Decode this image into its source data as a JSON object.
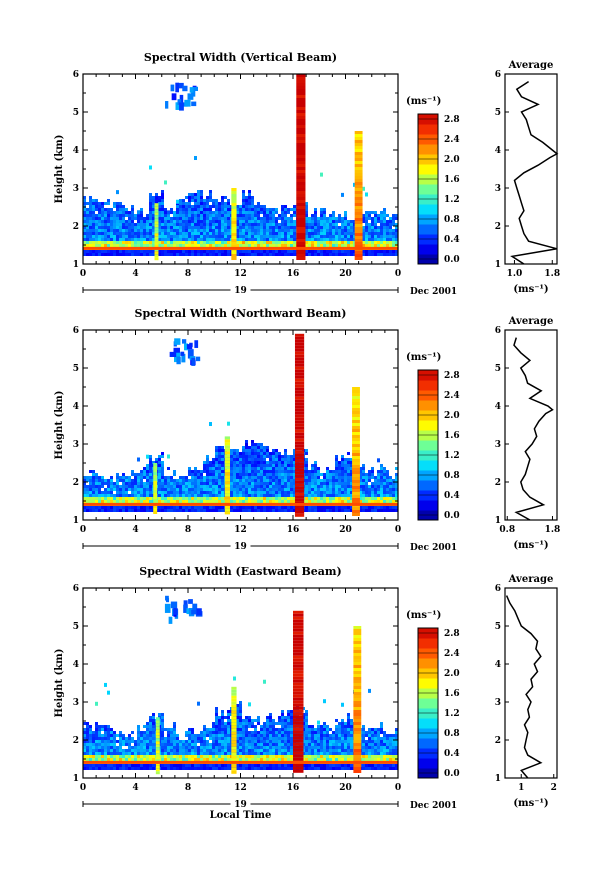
{
  "chart_data": [
    {
      "type": "heatmap",
      "title": "Spectral Width (Vertical Beam)",
      "ylabel": "Height (km)",
      "xlim": [
        0,
        24
      ],
      "ylim": [
        1,
        6
      ],
      "x_ticks": [
        "0",
        "4",
        "8",
        "12",
        "16",
        "20",
        "0"
      ],
      "y_ticks": [
        "1",
        "2",
        "3",
        "4",
        "5",
        "6"
      ],
      "day_label": "19",
      "month_label": "Dec 2001",
      "xlabel": "",
      "colorbar": {
        "unit": "(ms⁻¹)",
        "min": 0,
        "max": 3.0,
        "ticks": [
          "0.0",
          "0.4",
          "0.8",
          "1.2",
          "1.6",
          "2.0",
          "2.4",
          "2.8"
        ]
      },
      "features": {
        "layer_top_km": [
          2.7,
          2.6,
          2.5,
          2.4,
          2.3,
          2.8,
          2.4,
          2.6,
          2.9,
          2.8,
          2.7,
          2.6,
          2.8,
          2.5,
          2.4,
          2.5,
          2.6,
          2.3,
          2.4,
          2.3,
          2.2,
          2.3,
          2.4,
          2.3
        ],
        "layer_top_hours": [
          0.5,
          1.5,
          2.5,
          3.5,
          4.5,
          5.5,
          6.5,
          7.5,
          8.5,
          9.5,
          10.5,
          11.5,
          12.5,
          13.5,
          14.5,
          15.5,
          16.5,
          17.5,
          18.5,
          19.5,
          20.5,
          21.5,
          22.5,
          23.5
        ],
        "columns": [
          {
            "hour": 16.6,
            "width_h": 0.7,
            "top_km": 6.0,
            "value": 3.0
          },
          {
            "hour": 21.0,
            "width_h": 0.6,
            "top_km": 4.5,
            "value": 2.4
          },
          {
            "hour": 11.5,
            "width_h": 0.4,
            "top_km": 3.0,
            "value": 2.0
          },
          {
            "hour": 5.6,
            "width_h": 0.3,
            "top_km": 2.6,
            "value": 1.8
          }
        ]
      },
      "average": {
        "title": "Average",
        "xlabel": "(ms⁻¹)",
        "xlim": [
          0.8,
          1.9
        ],
        "x_ticks": [
          "1.0",
          "1.8"
        ],
        "height_km": [
          1.0,
          1.2,
          1.4,
          1.6,
          1.8,
          2.0,
          2.2,
          2.4,
          2.6,
          2.8,
          3.0,
          3.2,
          3.4,
          3.6,
          3.8,
          3.9,
          4.0,
          4.2,
          4.4,
          4.6,
          4.8,
          5.0,
          5.2,
          5.4,
          5.6,
          5.8
        ],
        "value": [
          1.2,
          0.95,
          1.9,
          1.3,
          1.2,
          1.15,
          1.1,
          1.2,
          1.15,
          1.1,
          1.05,
          1.0,
          1.2,
          1.5,
          1.75,
          1.9,
          1.8,
          1.6,
          1.35,
          1.3,
          1.25,
          1.15,
          1.5,
          1.15,
          1.05,
          1.3
        ]
      }
    },
    {
      "type": "heatmap",
      "title": "Spectral Width (Northward Beam)",
      "ylabel": "Height (km)",
      "xlim": [
        0,
        24
      ],
      "ylim": [
        1,
        6
      ],
      "x_ticks": [
        "0",
        "4",
        "8",
        "12",
        "16",
        "20",
        "0"
      ],
      "y_ticks": [
        "1",
        "2",
        "3",
        "4",
        "5",
        "6"
      ],
      "day_label": "19",
      "month_label": "Dec 2001",
      "xlabel": "",
      "colorbar": {
        "unit": "(ms⁻¹)",
        "min": 0,
        "max": 3.0,
        "ticks": [
          "0.0",
          "0.4",
          "0.8",
          "1.2",
          "1.6",
          "2.0",
          "2.4",
          "2.8"
        ]
      },
      "features": {
        "layer_top_km": [
          2.2,
          2.1,
          2.1,
          2.2,
          2.3,
          2.6,
          2.2,
          2.1,
          2.3,
          2.6,
          2.8,
          2.9,
          3.0,
          2.9,
          2.8,
          2.7,
          2.8,
          2.4,
          2.3,
          2.6,
          2.7,
          2.4,
          2.3,
          2.2
        ],
        "layer_top_hours": [
          0.5,
          1.5,
          2.5,
          3.5,
          4.5,
          5.5,
          6.5,
          7.5,
          8.5,
          9.5,
          10.5,
          11.5,
          12.5,
          13.5,
          14.5,
          15.5,
          16.5,
          17.5,
          18.5,
          19.5,
          20.5,
          21.5,
          22.5,
          23.5
        ],
        "columns": [
          {
            "hour": 16.5,
            "width_h": 0.7,
            "top_km": 5.9,
            "value": 3.0
          },
          {
            "hour": 20.8,
            "width_h": 0.6,
            "top_km": 4.5,
            "value": 2.3
          },
          {
            "hour": 11.0,
            "width_h": 0.4,
            "top_km": 3.2,
            "value": 2.0
          },
          {
            "hour": 5.5,
            "width_h": 0.3,
            "top_km": 2.5,
            "value": 1.8
          }
        ]
      },
      "average": {
        "title": "Average",
        "xlabel": "(ms⁻¹)",
        "xlim": [
          0.75,
          1.9
        ],
        "x_ticks": [
          "0.8",
          "1.8"
        ],
        "height_km": [
          1.0,
          1.2,
          1.4,
          1.6,
          1.8,
          2.0,
          2.2,
          2.4,
          2.6,
          2.8,
          3.0,
          3.2,
          3.4,
          3.6,
          3.8,
          3.9,
          4.0,
          4.2,
          4.4,
          4.6,
          4.8,
          5.0,
          5.2,
          5.4,
          5.6,
          5.8
        ],
        "value": [
          1.3,
          1.0,
          1.6,
          1.3,
          1.15,
          1.1,
          1.2,
          1.25,
          1.3,
          1.2,
          1.35,
          1.45,
          1.4,
          1.5,
          1.65,
          1.8,
          1.7,
          1.3,
          1.55,
          1.25,
          1.2,
          1.1,
          1.3,
          1.1,
          0.95,
          1.0
        ]
      }
    },
    {
      "type": "heatmap",
      "title": "Spectral Width (Eastward Beam)",
      "ylabel": "Height (km)",
      "xlim": [
        0,
        24
      ],
      "ylim": [
        1,
        6
      ],
      "x_ticks": [
        "0",
        "4",
        "8",
        "12",
        "16",
        "20",
        "0"
      ],
      "y_ticks": [
        "1",
        "2",
        "3",
        "4",
        "5",
        "6"
      ],
      "day_label": "19",
      "month_label": "Dec 2001",
      "xlabel": "Local Time",
      "colorbar": {
        "unit": "(ms⁻¹)",
        "min": 0,
        "max": 3.0,
        "ticks": [
          "0.0",
          "0.4",
          "0.8",
          "1.2",
          "1.6",
          "2.0",
          "2.4",
          "2.8"
        ]
      },
      "features": {
        "layer_top_km": [
          2.4,
          2.3,
          2.2,
          2.1,
          2.3,
          2.6,
          2.3,
          2.1,
          2.2,
          2.4,
          2.7,
          2.9,
          2.6,
          2.5,
          2.6,
          2.7,
          2.8,
          2.4,
          2.3,
          2.5,
          2.6,
          2.3,
          2.3,
          2.2
        ],
        "layer_top_hours": [
          0.5,
          1.5,
          2.5,
          3.5,
          4.5,
          5.5,
          6.5,
          7.5,
          8.5,
          9.5,
          10.5,
          11.5,
          12.5,
          13.5,
          14.5,
          15.5,
          16.5,
          17.5,
          18.5,
          19.5,
          20.5,
          21.5,
          22.5,
          23.5
        ],
        "columns": [
          {
            "hour": 16.4,
            "width_h": 0.8,
            "top_km": 5.4,
            "value": 3.0
          },
          {
            "hour": 20.9,
            "width_h": 0.6,
            "top_km": 5.0,
            "value": 2.4
          },
          {
            "hour": 11.5,
            "width_h": 0.4,
            "top_km": 3.4,
            "value": 2.0
          },
          {
            "hour": 5.7,
            "width_h": 0.3,
            "top_km": 2.6,
            "value": 1.8
          }
        ]
      },
      "average": {
        "title": "Average",
        "xlabel": "(ms⁻¹)",
        "xlim": [
          0.5,
          2.1
        ],
        "x_ticks": [
          "1",
          "2"
        ],
        "height_km": [
          1.0,
          1.2,
          1.4,
          1.6,
          1.8,
          2.0,
          2.2,
          2.4,
          2.6,
          2.8,
          3.0,
          3.2,
          3.4,
          3.6,
          3.8,
          4.0,
          4.2,
          4.4,
          4.6,
          4.8,
          5.0,
          5.2,
          5.4,
          5.6,
          5.8
        ],
        "value": [
          1.2,
          1.0,
          1.6,
          1.2,
          1.1,
          1.15,
          1.2,
          1.1,
          1.25,
          1.2,
          1.3,
          1.15,
          1.35,
          1.3,
          1.5,
          1.4,
          1.6,
          1.45,
          1.5,
          1.3,
          1.0,
          0.9,
          0.8,
          0.65,
          0.55
        ]
      }
    }
  ]
}
